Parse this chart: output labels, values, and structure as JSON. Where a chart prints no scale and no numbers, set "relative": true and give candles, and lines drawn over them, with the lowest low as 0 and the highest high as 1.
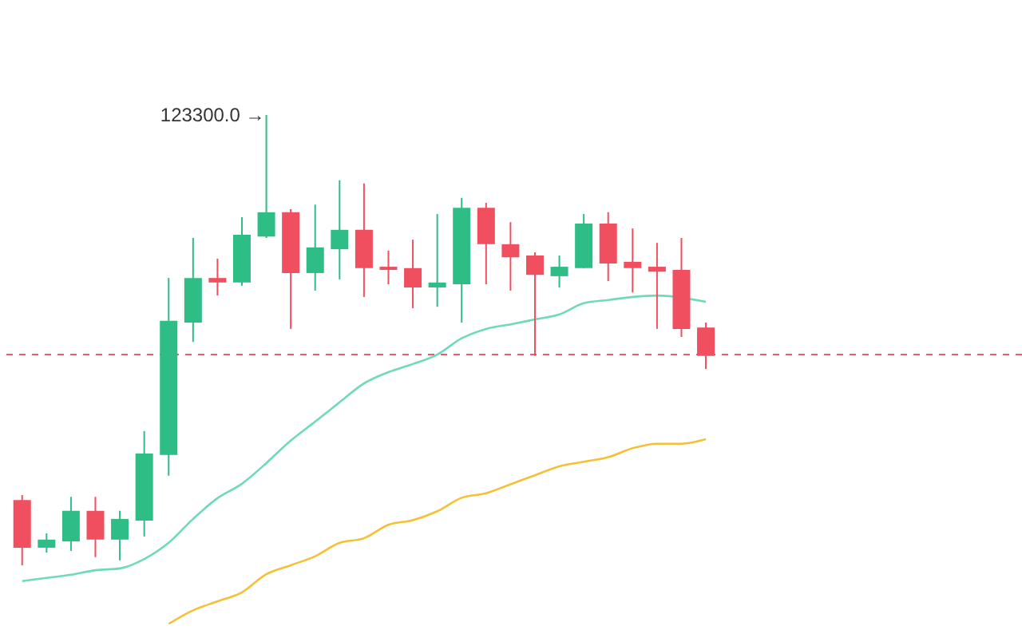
{
  "chart_data": {
    "type": "candlestick",
    "relative": true,
    "categories": [
      null,
      null,
      null,
      null,
      null,
      null,
      null,
      null,
      null,
      null,
      null,
      null,
      null,
      null,
      null,
      null,
      null,
      null,
      null,
      null,
      null,
      null,
      null,
      null,
      null,
      null,
      null,
      null,
      null
    ],
    "ohlc": [
      [
        0.145,
        0.156,
        0,
        0.039
      ],
      [
        0.039,
        0.071,
        0.028,
        0.057
      ],
      [
        0.053,
        0.152,
        0.032,
        0.121
      ],
      [
        0.121,
        0.152,
        0.018,
        0.057
      ],
      [
        0.057,
        0.121,
        0.011,
        0.103
      ],
      [
        0.099,
        0.298,
        0.064,
        0.248
      ],
      [
        0.245,
        0.638,
        0.199,
        0.543
      ],
      [
        0.539,
        0.727,
        0.496,
        0.638
      ],
      [
        0.638,
        0.681,
        0.599,
        0.628
      ],
      [
        0.628,
        0.773,
        0.621,
        0.734
      ],
      [
        0.73,
        1,
        0.727,
        0.784
      ],
      [
        0.784,
        0.791,
        0.525,
        0.649
      ],
      [
        0.649,
        0.801,
        0.61,
        0.706
      ],
      [
        0.702,
        0.855,
        0.635,
        0.745
      ],
      [
        0.745,
        0.848,
        0.596,
        0.66
      ],
      [
        0.663,
        0.699,
        0.624,
        0.656
      ],
      [
        0.66,
        0.723,
        0.571,
        0.617
      ],
      [
        0.617,
        0.78,
        0.574,
        0.628
      ],
      [
        0.624,
        0.816,
        0.539,
        0.794
      ],
      [
        0.794,
        0.805,
        0.624,
        0.713
      ],
      [
        0.713,
        0.762,
        0.61,
        0.684
      ],
      [
        0.688,
        0.695,
        0.465,
        0.645
      ],
      [
        0.642,
        0.688,
        0.617,
        0.663
      ],
      [
        0.66,
        0.78,
        0.66,
        0.759
      ],
      [
        0.759,
        0.784,
        0.631,
        0.67
      ],
      [
        0.674,
        0.748,
        0.606,
        0.66
      ],
      [
        0.663,
        0.716,
        0.525,
        0.652
      ],
      [
        0.656,
        0.727,
        0.507,
        0.525
      ],
      [
        0.528,
        0.539,
        0.436,
        0.465
      ]
    ],
    "colors": [
      "#ef4f5f",
      "#2ebd85",
      "#2ebd85",
      "#ef4f5f",
      "#2ebd85",
      "#2ebd85",
      "#2ebd85",
      "#2ebd85",
      "#ef4f5f",
      "#2ebd85",
      "#2ebd85",
      "#ef4f5f",
      "#2ebd85",
      "#2ebd85",
      "#ef4f5f",
      "#ef4f5f",
      "#ef4f5f",
      "#2ebd85",
      "#2ebd85",
      "#ef4f5f",
      "#ef4f5f",
      "#ef4f5f",
      "#2ebd85",
      "#2ebd85",
      "#ef4f5f",
      "#ef4f5f",
      "#ef4f5f",
      "#ef4f5f",
      "#ef4f5f"
    ],
    "series": [
      {
        "type": "line",
        "color": "#6fd9bb",
        "values": [
          -0.035,
          -0.028,
          -0.021,
          -0.011,
          -0.007,
          0.014,
          0.05,
          0.103,
          0.149,
          0.181,
          0.227,
          0.277,
          0.319,
          0.362,
          0.404,
          0.429,
          0.447,
          0.468,
          0.504,
          0.525,
          0.535,
          0.546,
          0.557,
          0.582,
          0.589,
          0.596,
          0.599,
          null,
          0.585
        ]
      },
      {
        "type": "line",
        "color": "#f5c035",
        "values": [
          null,
          null,
          null,
          null,
          null,
          null,
          -0.13,
          -0.1,
          -0.08,
          -0.06,
          -0.02,
          0,
          0.02,
          0.05,
          0.06,
          0.09,
          0.1,
          0.12,
          0.15,
          0.16,
          0.18,
          0.2,
          0.22,
          0.23,
          0.24,
          0.26,
          0.27,
          0.27,
          0.28
        ]
      }
    ],
    "ref_lines": [
      {
        "axis": "y",
        "value": 0.468,
        "color": "#e06070",
        "line_style": "dashed"
      }
    ],
    "annotations": [
      "123300.0 →"
    ]
  }
}
